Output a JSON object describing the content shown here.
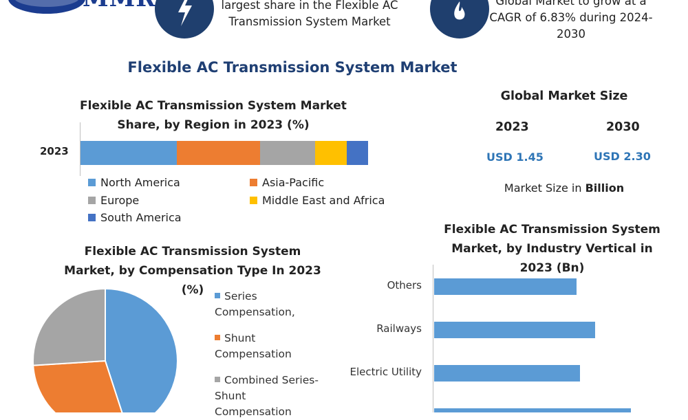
{
  "header": {
    "logo_text": "MMR",
    "logo_icon": "globe-icon",
    "callout_1": {
      "icon": "lightning-icon",
      "text": "largest share in the Flexible AC Transmission System Market"
    },
    "callout_2": {
      "icon": "flame-icon",
      "text": "Global Market to grow at a CAGR of 6.83% during 2024-2030"
    }
  },
  "main_title": "Flexible AC Transmission System Market",
  "global_market": {
    "title": "Global Market Size",
    "year_1": "2023",
    "year_2": "2030",
    "value_1": "USD 1.45",
    "value_2": "USD 2.30",
    "note_prefix": "Market Size in ",
    "note_bold": "Billion"
  },
  "accent_color": "#1f3f73",
  "chart_data": [
    {
      "type": "bar",
      "orientation": "horizontal-stacked",
      "title": "Flexible AC Transmission System Market Share, by Region in 2023 (%)",
      "categories": [
        "2023"
      ],
      "series": [
        {
          "name": "North America",
          "values": [
            33.5
          ],
          "color": "#5b9bd5"
        },
        {
          "name": "Asia-Pacific",
          "values": [
            29
          ],
          "color": "#ed7d31"
        },
        {
          "name": "Europe",
          "values": [
            19
          ],
          "color": "#a5a5a5"
        },
        {
          "name": "Middle East and Africa",
          "values": [
            11
          ],
          "color": "#ffc000"
        },
        {
          "name": "South America",
          "values": [
            7.5
          ],
          "color": "#4472c4"
        }
      ],
      "legend": "bottom"
    },
    {
      "type": "pie",
      "title": "Flexible AC Transmission System Market, by Compensation Type In 2023 (%)",
      "labels": [
        "Series Compensation,",
        "Shunt Compensation",
        "Combined Series-Shunt Compensation"
      ],
      "values": [
        45,
        29,
        26
      ],
      "colors": [
        "#5b9bd5",
        "#ed7d31",
        "#a5a5a5"
      ],
      "legend": "right"
    },
    {
      "type": "bar",
      "orientation": "horizontal",
      "title": "Flexible AC Transmission System Market, by Industry Vertical in 2023 (Bn)",
      "categories": [
        "Others",
        "Railways",
        "Electric Utility"
      ],
      "values": [
        0.23,
        0.26,
        0.235
      ],
      "color": "#5b9bd5"
    }
  ]
}
